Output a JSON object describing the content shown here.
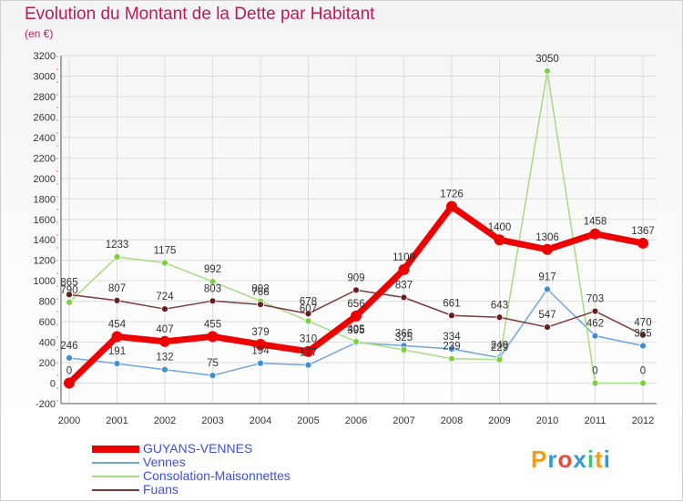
{
  "title": "Evolution du Montant de la Dette par Habitant",
  "subtitle": "(en €)",
  "brand": {
    "text": "Proxiti"
  },
  "colors": {
    "grid": "#dddddd",
    "axis": "#555555",
    "tick_label": "#333333",
    "title": "#c2185b"
  },
  "chart_data": {
    "type": "line",
    "title": "Evolution du Montant de la Dette par Habitant",
    "subtitle": "(en €)",
    "xlabel": "",
    "ylabel": "",
    "x": [
      "2000",
      "2001",
      "2002",
      "2003",
      "2004",
      "2005",
      "2006",
      "2007",
      "2008",
      "2009",
      "2010",
      "2011",
      "2012"
    ],
    "ylim": [
      -200,
      3200
    ],
    "yticks": [
      -200,
      0,
      200,
      400,
      600,
      800,
      1000,
      1200,
      1400,
      1600,
      1800,
      2000,
      2200,
      2400,
      2600,
      2800,
      3000,
      3200
    ],
    "grid": true,
    "legend_position": "bottom-left",
    "series": [
      {
        "name": "GUYANS-VENNES",
        "color": "#ee0000",
        "marker": "#ee0000",
        "width": 7,
        "radius": 6,
        "values": [
          0,
          454,
          407,
          455,
          379,
          310,
          656,
          1109,
          1726,
          1400,
          1306,
          1458,
          1367
        ],
        "labels": [
          "0",
          "454",
          "407",
          "455",
          "379",
          "310",
          "656",
          "1109",
          "1726",
          "1400",
          "1306",
          "1458",
          "1367"
        ]
      },
      {
        "name": "Vennes",
        "color": "#6fa8d8",
        "marker": "#3b8fd4",
        "width": 1.5,
        "radius": 3.5,
        "values": [
          246,
          191,
          132,
          75,
          194,
          177,
          395,
          366,
          334,
          249,
          917,
          462,
          365
        ],
        "labels": [
          "246",
          "191",
          "132",
          "75",
          "194",
          "177",
          "395",
          "366",
          "334",
          "249",
          "917",
          "462",
          "365"
        ]
      },
      {
        "name": "Consolation-Maisonnettes",
        "color": "#a6dc82",
        "marker": "#7ccf3f",
        "width": 1.5,
        "radius": 3.5,
        "values": [
          790,
          1233,
          1175,
          992,
          802,
          607,
          405,
          325,
          239,
          229,
          3050,
          0,
          0
        ],
        "labels": [
          "790",
          "1233",
          "1175",
          "992",
          "802",
          "607",
          "405",
          "325",
          "239",
          "229",
          "3050",
          "0",
          "0"
        ]
      },
      {
        "name": "Fuans",
        "color": "#7a3b3b",
        "marker": "#6b1d1d",
        "width": 1.5,
        "radius": 3.5,
        "values": [
          865,
          807,
          724,
          803,
          768,
          678,
          909,
          837,
          661,
          643,
          547,
          703,
          470
        ],
        "labels": [
          "865",
          "807",
          "724",
          "803",
          "768",
          "678",
          "909",
          "837",
          "661",
          "643",
          "547",
          "703",
          "470"
        ]
      }
    ]
  }
}
